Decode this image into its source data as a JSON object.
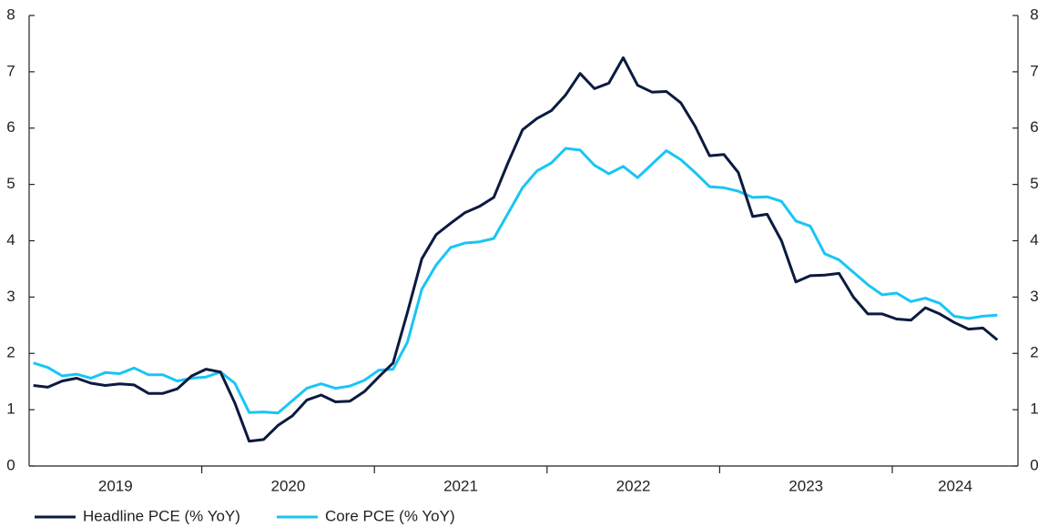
{
  "chart_data": {
    "type": "line",
    "categories": [
      "2019",
      null,
      null,
      null,
      null,
      null,
      null,
      null,
      null,
      null,
      null,
      null,
      "2020",
      null,
      null,
      null,
      null,
      null,
      null,
      null,
      null,
      null,
      null,
      null,
      "2021",
      null,
      null,
      null,
      null,
      null,
      null,
      null,
      null,
      null,
      null,
      null,
      "2022",
      null,
      null,
      null,
      null,
      null,
      null,
      null,
      null,
      null,
      null,
      null,
      "2023",
      null,
      null,
      null,
      null,
      null,
      null,
      null,
      null,
      null,
      null,
      null,
      "2024",
      null,
      null,
      null,
      null,
      null,
      null,
      null
    ],
    "series": [
      {
        "name": "Headline PCE (% YoY)",
        "color": "#0b1a3f",
        "values": [
          1.43,
          1.4,
          1.51,
          1.56,
          1.47,
          1.43,
          1.46,
          1.44,
          1.29,
          1.29,
          1.37,
          1.6,
          1.72,
          1.67,
          1.12,
          0.44,
          0.47,
          0.72,
          0.89,
          1.17,
          1.26,
          1.14,
          1.15,
          1.32,
          1.58,
          1.83,
          2.73,
          3.68,
          4.11,
          4.31,
          4.5,
          4.61,
          4.77,
          5.39,
          5.97,
          6.17,
          6.31,
          6.59,
          6.97,
          6.7,
          6.8,
          7.25,
          6.76,
          6.64,
          6.65,
          6.45,
          6.03,
          5.51,
          5.53,
          5.21,
          4.43,
          4.47,
          4.0,
          3.27,
          3.38,
          3.39,
          3.42,
          3.0,
          2.7,
          2.7,
          2.61,
          2.59,
          2.81,
          2.7,
          2.55,
          2.43,
          2.45,
          2.24
        ]
      },
      {
        "name": "Core PCE (% YoY)",
        "color": "#19c5f5",
        "values": [
          1.83,
          1.75,
          1.6,
          1.63,
          1.56,
          1.66,
          1.64,
          1.74,
          1.62,
          1.62,
          1.51,
          1.56,
          1.58,
          1.67,
          1.47,
          0.95,
          0.96,
          0.94,
          1.16,
          1.38,
          1.46,
          1.38,
          1.42,
          1.52,
          1.7,
          1.72,
          2.2,
          3.14,
          3.57,
          3.88,
          3.96,
          3.98,
          4.04,
          4.49,
          4.94,
          5.24,
          5.38,
          5.64,
          5.61,
          5.34,
          5.19,
          5.32,
          5.12,
          5.36,
          5.6,
          5.44,
          5.21,
          4.96,
          4.94,
          4.88,
          4.77,
          4.78,
          4.7,
          4.35,
          4.26,
          3.77,
          3.66,
          3.44,
          3.22,
          3.04,
          3.07,
          2.92,
          2.98,
          2.89,
          2.66,
          2.62,
          2.66,
          2.68
        ]
      }
    ],
    "ylim": [
      0,
      8
    ],
    "yticks": [
      0,
      1,
      2,
      3,
      4,
      5,
      6,
      7,
      8
    ],
    "y2lim": [
      0,
      8
    ],
    "y2ticks": [
      0,
      1,
      2,
      3,
      4,
      5,
      6,
      7,
      8
    ],
    "legend": "bottom-left"
  }
}
